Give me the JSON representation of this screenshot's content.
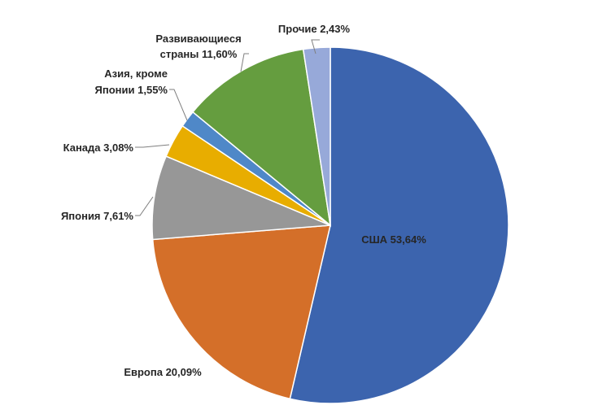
{
  "chart_data": {
    "type": "pie",
    "title": "",
    "start_angle_deg": 0,
    "direction": "clockwise",
    "slices": [
      {
        "name": "США",
        "value": 53.64,
        "label": "США 53,64%",
        "color": "#3C64AE"
      },
      {
        "name": "Европа",
        "value": 20.09,
        "label": "Европа 20,09%",
        "color": "#D46F29"
      },
      {
        "name": "Япония",
        "value": 7.61,
        "label": "Япония 7,61%",
        "color": "#979797"
      },
      {
        "name": "Канада",
        "value": 3.08,
        "label": "Канада 3,08%",
        "color": "#E8AD00"
      },
      {
        "name": "Азия, кроме Японии",
        "value": 1.55,
        "label_lines": [
          "Азия, кроме",
          "Японии  1,55%"
        ],
        "color": "#4F88C8"
      },
      {
        "name": "Развивающиеся страны",
        "value": 11.6,
        "label_lines": [
          "Развивающиеся",
          "страны 11,60%"
        ],
        "color": "#659D3F"
      },
      {
        "name": "Прочие",
        "value": 2.43,
        "label": "Прочие 2,43%",
        "color": "#97A9D9"
      }
    ]
  }
}
